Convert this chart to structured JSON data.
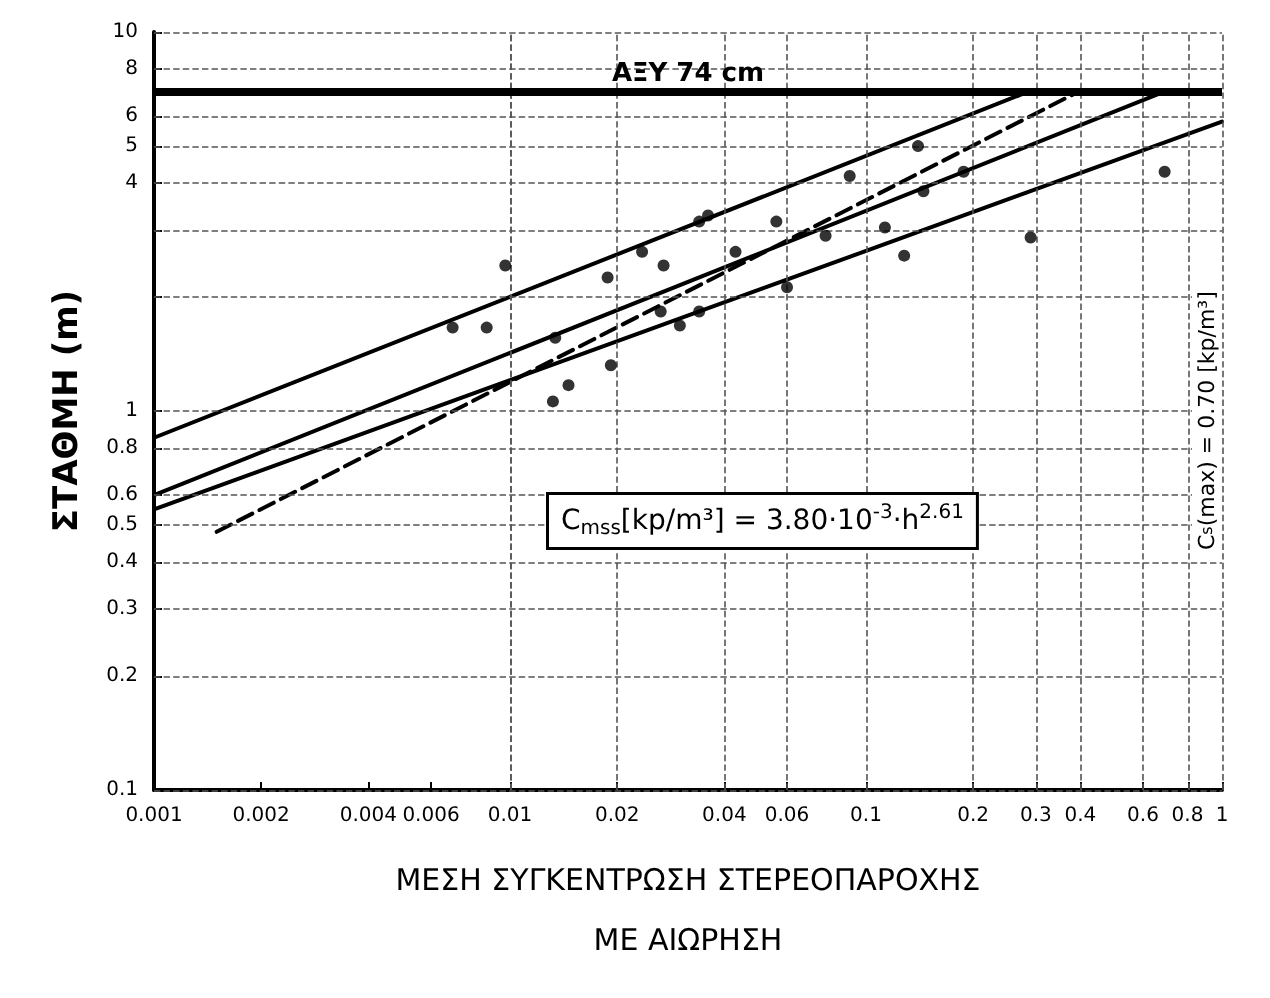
{
  "chart_data": {
    "type": "scatter",
    "xlabel": "ΜΕΣΗ ΣΥΓΚΕΝΤΡΩΣΗ ΣΤΕΡΕΟΠΑΡΟΧΗΣ\nΜΕ ΑΙΩΡΗΣΗ",
    "ylabel": "ΣΤΑΘΜΗ (m)",
    "log": "xy",
    "xlim": [
      0.001,
      1
    ],
    "ylim": [
      0.1,
      10
    ],
    "xticks": [
      0.001,
      0.002,
      0.004,
      0.006,
      0.01,
      0.02,
      0.04,
      0.06,
      0.1,
      0.2,
      0.3,
      0.4,
      0.6,
      0.8,
      1
    ],
    "yticks": [
      0.1,
      0.2,
      0.3,
      0.4,
      0.5,
      0.6,
      0.8,
      1,
      {
        "value": 2,
        "label": null
      },
      {
        "value": 3,
        "label": null
      },
      4,
      5,
      6,
      8,
      10
    ],
    "grid": true,
    "marker": "circle",
    "series": [
      {
        "color": "#000000",
        "x": [
          0.0069,
          0.0086,
          0.0097,
          0.0188,
          0.0146,
          0.0132,
          0.0192,
          0.0134,
          0.14,
          0.09,
          0.036,
          0.056,
          0.0235,
          0.027,
          0.0265,
          0.03,
          0.034,
          0.06,
          0.113,
          0.128,
          0.29,
          0.69,
          0.188,
          0.043,
          0.077,
          0.145,
          0.034
        ],
        "values": [
          1.66,
          1.66,
          2.42,
          2.25,
          1.17,
          1.06,
          1.32,
          1.56,
          5.0,
          4.17,
          3.28,
          3.16,
          2.63,
          2.42,
          1.83,
          1.68,
          1.83,
          2.12,
          3.05,
          2.57,
          2.87,
          4.28,
          4.28,
          2.63,
          2.9,
          3.8,
          3.16
        ]
      },
      {
        "type": "line",
        "color": "#000000",
        "marker": "none",
        "line_style": "solid",
        "x": [
          0.001,
          0.7
        ],
        "values": [
          0.6,
          7
        ]
      },
      {
        "type": "line",
        "color": "#000000",
        "marker": "none",
        "line_style": "solid",
        "x": [
          0.001,
          0.29
        ],
        "values": [
          0.85,
          7
        ]
      },
      {
        "type": "line",
        "color": "#000000",
        "marker": "none",
        "line_style": "dashed",
        "x": [
          0.0015,
          0.4
        ],
        "values": [
          0.48,
          7
        ]
      },
      {
        "type": "line",
        "color": "#000000",
        "marker": "none",
        "line_style": "solid",
        "x": [
          0.001,
          1
        ],
        "values": [
          0.55,
          5.8
        ]
      }
    ],
    "ref_lines": [
      {
        "axis": "y",
        "value": 7,
        "label": "ΑΞΥ 74 cm",
        "color": "#000000"
      }
    ],
    "annotations": [
      "C$_{mss}$[kp/m³] = 3.80·10$^{-3}$·h$^{2.61}$",
      "C$_{s}$(max) = 0.70 [kp/m³]"
    ]
  }
}
